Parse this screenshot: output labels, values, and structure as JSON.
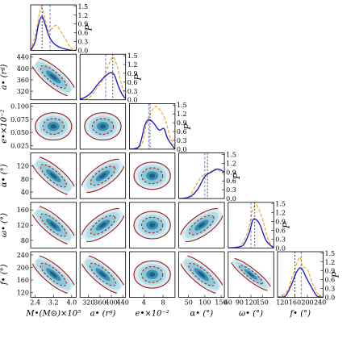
{
  "chart_data": {
    "type": "corner",
    "params": [
      {
        "key": "M",
        "label": "M•(M⊙)×10⁵",
        "range": [
          2.2,
          4.2
        ],
        "ticks": [
          "2.4",
          "3.2",
          "4.0"
        ],
        "tickvals": [
          2.4,
          3.2,
          4.0
        ],
        "med1": 2.7,
        "med2": 3.05
      },
      {
        "key": "a",
        "label": "a• (rᵍ)",
        "range": [
          290,
          450
        ],
        "ticks": [
          "320",
          "360",
          "400",
          "440"
        ],
        "tickvals": [
          320,
          360,
          400,
          440
        ],
        "med1": 405,
        "med2": 380
      },
      {
        "key": "e",
        "label": "e•×10⁻²",
        "range": [
          1.0,
          10.5
        ],
        "ticks": [
          "4",
          "8"
        ],
        "tickvals": [
          4,
          8
        ],
        "med1": 5.3,
        "med2": 5.0
      },
      {
        "key": "alpha",
        "label": "α• (°)",
        "range": [
          20,
          160
        ],
        "ticks": [
          "50",
          "100",
          "150"
        ],
        "tickvals": [
          50,
          100,
          150
        ],
        "med1": 108,
        "med2": 100
      },
      {
        "key": "omega",
        "label": "ω• (°)",
        "range": [
          60,
          180
        ],
        "ticks": [
          "60",
          "90",
          "120",
          "150"
        ],
        "tickvals": [
          60,
          90,
          120,
          150
        ],
        "med1": 130,
        "med2": 120
      },
      {
        "key": "f",
        "label": "f• (°)",
        "range": [
          105,
          250
        ],
        "ticks": [
          "120",
          "160",
          "200",
          "240"
        ],
        "tickvals": [
          120,
          160,
          200,
          240
        ],
        "med1": 160,
        "med2": 180
      }
    ],
    "row_ticks": [
      null,
      {
        "ticks": [
          "440",
          "400",
          "360",
          "320"
        ],
        "tickvals": [
          440,
          400,
          360,
          320
        ]
      },
      {
        "ticks": [
          "0.100",
          "0.075",
          "0.050",
          "0.025"
        ],
        "tickvals": [
          10.0,
          7.5,
          5.0,
          2.5
        ]
      },
      {
        "ticks": [
          "120",
          "80",
          "40"
        ],
        "tickvals": [
          120,
          80,
          40
        ]
      },
      {
        "ticks": [
          "160",
          "120",
          "80"
        ],
        "tickvals": [
          160,
          120,
          80
        ]
      },
      {
        "ticks": [
          "240",
          "200",
          "160",
          "120"
        ],
        "tickvals": [
          240,
          200,
          160,
          120
        ]
      }
    ],
    "diag_ticks": [
      "1.5",
      "1.2",
      "0.9",
      "0.6",
      "0.3",
      "0.0"
    ],
    "diag_tickvals": [
      1.5,
      1.2,
      0.9,
      0.6,
      0.3,
      0.0
    ],
    "diag_ylabel": "P",
    "diag_ylim": [
      0,
      1.55
    ],
    "series": [
      {
        "name": "blue",
        "color": "#1f1fcc"
      },
      {
        "name": "orange",
        "color": "#f5a623"
      }
    ],
    "marginals": {
      "M": {
        "blue": [
          [
            2.2,
            0.0
          ],
          [
            2.4,
            0.3
          ],
          [
            2.55,
            0.9
          ],
          [
            2.7,
            1.15
          ],
          [
            2.85,
            0.85
          ],
          [
            3.0,
            0.5
          ],
          [
            3.2,
            0.25
          ],
          [
            3.5,
            0.1
          ],
          [
            4.0,
            0.0
          ],
          [
            4.2,
            0.0
          ]
        ],
        "orange": [
          [
            2.2,
            0.0
          ],
          [
            2.4,
            0.5
          ],
          [
            2.6,
            1.3
          ],
          [
            2.7,
            1.45
          ],
          [
            2.85,
            1.0
          ],
          [
            3.0,
            0.65
          ],
          [
            3.3,
            0.85
          ],
          [
            3.6,
            0.55
          ],
          [
            3.95,
            0.1
          ],
          [
            4.2,
            0.0
          ]
        ]
      },
      "a": {
        "blue": [
          [
            290,
            0.02
          ],
          [
            310,
            0.1
          ],
          [
            330,
            0.25
          ],
          [
            350,
            0.5
          ],
          [
            370,
            0.72
          ],
          [
            395,
            0.92
          ],
          [
            410,
            0.85
          ],
          [
            425,
            0.45
          ],
          [
            440,
            0.15
          ],
          [
            450,
            0.05
          ]
        ],
        "orange": [
          [
            290,
            0.0
          ],
          [
            320,
            0.05
          ],
          [
            345,
            0.35
          ],
          [
            365,
            0.6
          ],
          [
            385,
            1.05
          ],
          [
            405,
            1.45
          ],
          [
            420,
            1.15
          ],
          [
            435,
            0.55
          ],
          [
            450,
            0.1
          ]
        ]
      },
      "e": {
        "blue": [
          [
            1.0,
            0.0
          ],
          [
            3.0,
            0.1
          ],
          [
            4.2,
            0.8
          ],
          [
            5.0,
            1.0
          ],
          [
            6.0,
            0.9
          ],
          [
            7.2,
            0.65
          ],
          [
            8.2,
            0.7
          ],
          [
            9.0,
            0.35
          ],
          [
            10.5,
            0.0
          ]
        ],
        "orange": [
          [
            1.0,
            0.0
          ],
          [
            3.5,
            0.15
          ],
          [
            4.5,
            0.8
          ],
          [
            5.5,
            1.25
          ],
          [
            6.5,
            1.45
          ],
          [
            7.5,
            1.3
          ],
          [
            8.5,
            1.0
          ],
          [
            9.5,
            0.4
          ],
          [
            10.5,
            0.1
          ]
        ]
      },
      "alpha": {
        "blue": [
          [
            20,
            0.0
          ],
          [
            40,
            0.02
          ],
          [
            60,
            0.1
          ],
          [
            80,
            0.35
          ],
          [
            100,
            0.75
          ],
          [
            120,
            0.9
          ],
          [
            140,
            1.0
          ],
          [
            160,
            0.9
          ]
        ],
        "orange": [
          [
            20,
            0.0
          ],
          [
            50,
            0.05
          ],
          [
            70,
            0.4
          ],
          [
            90,
            0.75
          ],
          [
            110,
            0.85
          ],
          [
            130,
            1.0
          ],
          [
            150,
            0.9
          ],
          [
            160,
            0.8
          ]
        ]
      },
      "omega": {
        "blue": [
          [
            60,
            0.0
          ],
          [
            80,
            0.02
          ],
          [
            100,
            0.1
          ],
          [
            115,
            0.5
          ],
          [
            125,
            0.95
          ],
          [
            135,
            0.95
          ],
          [
            145,
            0.75
          ],
          [
            160,
            0.25
          ],
          [
            180,
            0.0
          ]
        ],
        "orange": [
          [
            60,
            0.0
          ],
          [
            90,
            0.05
          ],
          [
            110,
            0.5
          ],
          [
            125,
            1.3
          ],
          [
            135,
            1.45
          ],
          [
            150,
            1.0
          ],
          [
            165,
            0.3
          ],
          [
            180,
            0.0
          ]
        ]
      },
      "f": {
        "blue": [
          [
            105,
            0.0
          ],
          [
            130,
            0.05
          ],
          [
            150,
            0.45
          ],
          [
            165,
            0.85
          ],
          [
            180,
            1.0
          ],
          [
            195,
            0.7
          ],
          [
            210,
            0.4
          ],
          [
            230,
            0.05
          ],
          [
            250,
            0.0
          ]
        ],
        "orange": [
          [
            105,
            0.0
          ],
          [
            135,
            0.2
          ],
          [
            155,
            0.8
          ],
          [
            175,
            1.35
          ],
          [
            185,
            1.05
          ],
          [
            200,
            0.95
          ],
          [
            215,
            0.5
          ],
          [
            235,
            0.1
          ],
          [
            250,
            0.0
          ]
        ]
      }
    },
    "contours": {
      "M-a": {
        "shape": "diag-neg"
      },
      "M-e": {
        "shape": "blob"
      },
      "a-e": {
        "shape": "blob"
      },
      "M-alpha": {
        "shape": "diag-neg"
      },
      "a-alpha": {
        "shape": "diag-pos"
      },
      "e-alpha": {
        "shape": "blob"
      },
      "M-omega": {
        "shape": "diag-neg"
      },
      "a-omega": {
        "shape": "diag-pos"
      },
      "e-omega": {
        "shape": "blob"
      },
      "alpha-omega": {
        "shape": "diag-pos"
      },
      "M-f": {
        "shape": "diag-neg"
      },
      "a-f": {
        "shape": "diag-neg"
      },
      "e-f": {
        "shape": "blob"
      },
      "alpha-f": {
        "shape": "diag-neg"
      },
      "omega-f": {
        "shape": "diag-neg-tight"
      }
    },
    "colors": {
      "fill_outer": "#d6eef3",
      "fill_mid": "#8cc8d8",
      "fill_inner": "#3a8fb0",
      "fill_core": "#1e5f88",
      "contour": "#a01c1c"
    }
  }
}
